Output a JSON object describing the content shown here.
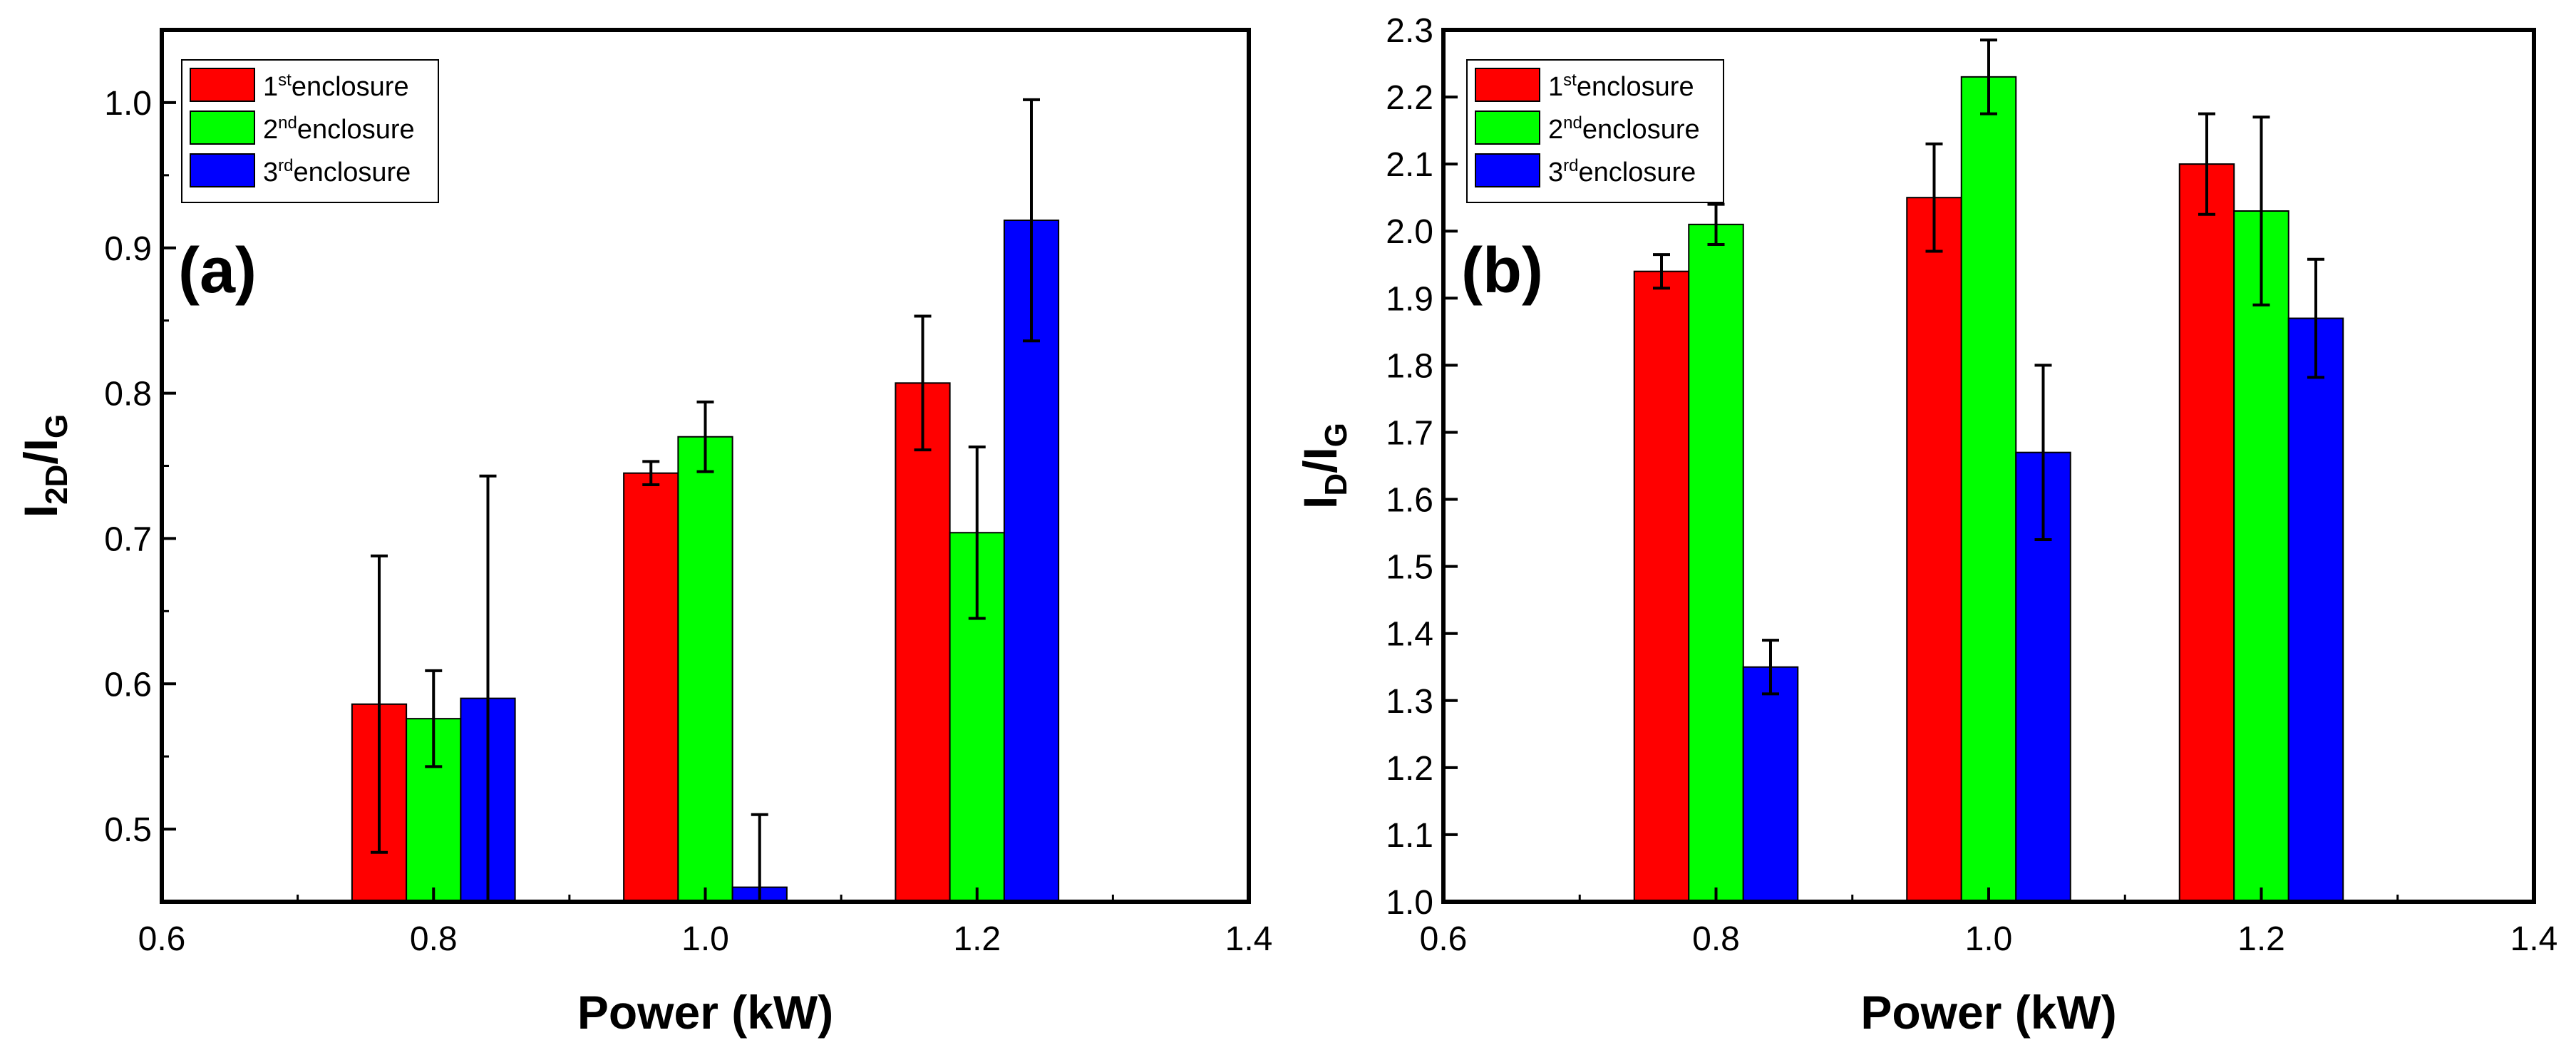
{
  "chart_data": [
    {
      "type": "bar",
      "panel_label": "(a)",
      "ylabel_main": "I",
      "ylabel_sub1": "2D",
      "ylabel_sep": "/I",
      "ylabel_sub2": "G",
      "xlabel": "Power (kW)",
      "xlim": [
        0.6,
        1.4
      ],
      "ylim": [
        0.45,
        1.05
      ],
      "xticks": [
        "0.6",
        "0.8",
        "1.0",
        "1.2",
        "1.4"
      ],
      "yticks": [
        "0.5",
        "0.6",
        "0.7",
        "0.8",
        "0.9",
        "1.0"
      ],
      "categories": [
        0.8,
        1.0,
        1.2
      ],
      "series": [
        {
          "name": "enclosure",
          "ordinal": "1",
          "suffix": "st",
          "color": "#ff0000",
          "values": [
            0.586,
            0.745,
            0.807
          ],
          "errors": [
            0.102,
            0.008,
            0.046
          ]
        },
        {
          "name": "enclosure",
          "ordinal": "2",
          "suffix": "nd",
          "color": "#00ff00",
          "values": [
            0.576,
            0.77,
            0.704
          ],
          "errors": [
            0.033,
            0.024,
            0.059
          ]
        },
        {
          "name": "enclosure",
          "ordinal": "3",
          "suffix": "rd",
          "color": "#0000ff",
          "values": [
            0.59,
            0.46,
            0.919
          ],
          "errors": [
            0.153,
            0.05,
            0.083
          ]
        }
      ],
      "legend_position": "top-left"
    },
    {
      "type": "bar",
      "panel_label": "(b)",
      "ylabel_main": "I",
      "ylabel_sub1": "D",
      "ylabel_sep": "/I",
      "ylabel_sub2": "G",
      "xlabel": "Power (kW)",
      "xlim": [
        0.6,
        1.4
      ],
      "ylim": [
        1.0,
        2.3
      ],
      "xticks": [
        "0.6",
        "0.8",
        "1.0",
        "1.2",
        "1.4"
      ],
      "yticks": [
        "1.0",
        "1.1",
        "1.2",
        "1.3",
        "1.4",
        "1.5",
        "1.6",
        "1.7",
        "1.8",
        "1.9",
        "2.0",
        "2.1",
        "2.2",
        "2.3"
      ],
      "categories": [
        0.8,
        1.0,
        1.2
      ],
      "series": [
        {
          "name": "enclosure",
          "ordinal": "1",
          "suffix": "st",
          "color": "#ff0000",
          "values": [
            1.94,
            2.05,
            2.1
          ],
          "errors": [
            0.025,
            0.08,
            0.075
          ]
        },
        {
          "name": "enclosure",
          "ordinal": "2",
          "suffix": "nd",
          "color": "#00ff00",
          "values": [
            2.01,
            2.23,
            2.03
          ],
          "errors": [
            0.03,
            0.055,
            0.14
          ]
        },
        {
          "name": "enclosure",
          "ordinal": "3",
          "suffix": "rd",
          "color": "#0000ff",
          "values": [
            1.35,
            1.67,
            1.87
          ],
          "errors": [
            0.04,
            0.13,
            0.088
          ]
        }
      ],
      "legend_position": "top-left"
    }
  ]
}
